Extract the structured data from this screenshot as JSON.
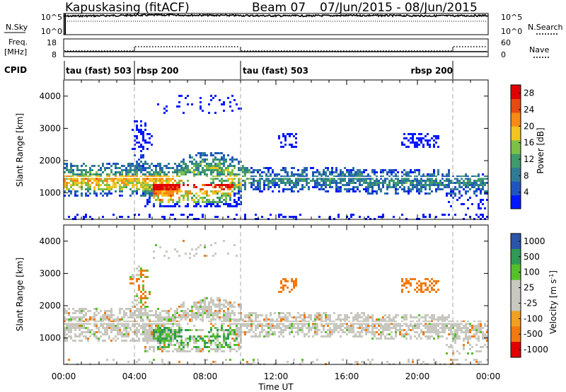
{
  "header": {
    "site": "Kapuskasing (fitACF)",
    "beam": "Beam 07",
    "dates": "07/Jun/2015 - 08/Jun/2015"
  },
  "nsky": {
    "left_label": "N.Sky",
    "right_label": "N.Search",
    "left_ticks": [
      "10^5",
      "10^0"
    ],
    "right_ticks": [
      "10^5",
      "10^0"
    ]
  },
  "freq": {
    "left_label_1": "Freq.",
    "left_label_2": "[MHz]",
    "right_label": "Nave",
    "left_ticks": [
      "18",
      "8"
    ],
    "right_ticks": [
      "60",
      "0"
    ]
  },
  "cpid": {
    "label": "CPID",
    "segments": [
      {
        "start": 0,
        "end": 4,
        "name": "tau (fast) 503"
      },
      {
        "start": 4,
        "end": 10,
        "name": "rbsp 200"
      },
      {
        "start": 10,
        "end": 22,
        "name": "tau (fast) 503"
      },
      {
        "start": 22,
        "end": 24,
        "name": "rbsp 200"
      }
    ]
  },
  "colors": {
    "power": [
      "#0018ff",
      "#1f55bf",
      "#2f7b95",
      "#3f9a6c",
      "#7dc046",
      "#f2c41e",
      "#f78a14",
      "#e84a10",
      "#e00000"
    ],
    "velocity": [
      "#e00000",
      "#f27a10",
      "#f2a020",
      "#c8c8c0",
      "#c8c8c0",
      "#55c02a",
      "#2f9a55",
      "#2a55a8"
    ]
  },
  "chart_data": [
    {
      "type": "line",
      "panel": "N.Sky",
      "x": [
        0,
        2,
        4,
        6,
        8,
        10,
        12,
        14,
        16,
        18,
        20,
        22,
        24
      ],
      "series": [
        {
          "values": [
            50000,
            60000,
            80000,
            90000,
            80000,
            70000,
            60000,
            60000,
            70000,
            70000,
            60000,
            60000,
            70000
          ]
        }
      ],
      "ylim": [
        1,
        100000
      ],
      "ytick_labels": [
        "10^0",
        "10^5"
      ]
    },
    {
      "type": "line",
      "panel": "Freq.",
      "x": [
        0,
        4,
        10,
        22,
        24
      ],
      "series": [
        {
          "values": [
            10,
            10,
            10,
            10,
            10
          ]
        }
      ],
      "ylim": [
        8,
        18
      ]
    },
    {
      "type": "heatmap",
      "panel": "Power",
      "xlabel": "",
      "ylabel": "Slant Range [km]",
      "xlim": [
        0,
        24
      ],
      "ylim": [
        180,
        4500
      ],
      "yticks": [
        1000,
        2000,
        3000,
        4000
      ],
      "colorbar_label": "Power [dB]",
      "colorbar_ticks": [
        4,
        8,
        12,
        16,
        20,
        24,
        28
      ],
      "colorbar_range": [
        0,
        30
      ]
    },
    {
      "type": "heatmap",
      "panel": "Velocity",
      "xlabel": "Time UT",
      "ylabel": "Slant Range [km]",
      "xlim": [
        0,
        24
      ],
      "ylim": [
        180,
        4500
      ],
      "yticks": [
        1000,
        2000,
        3000,
        4000
      ],
      "xtick_labels": [
        "00:00",
        "04:00",
        "08:00",
        "12:00",
        "16:00",
        "20:00",
        "00:00"
      ],
      "colorbar_label": "Velocity [m s-1]",
      "colorbar_ticks": [
        -1000,
        -500,
        -100,
        -25,
        25,
        100,
        500,
        1000
      ]
    }
  ]
}
